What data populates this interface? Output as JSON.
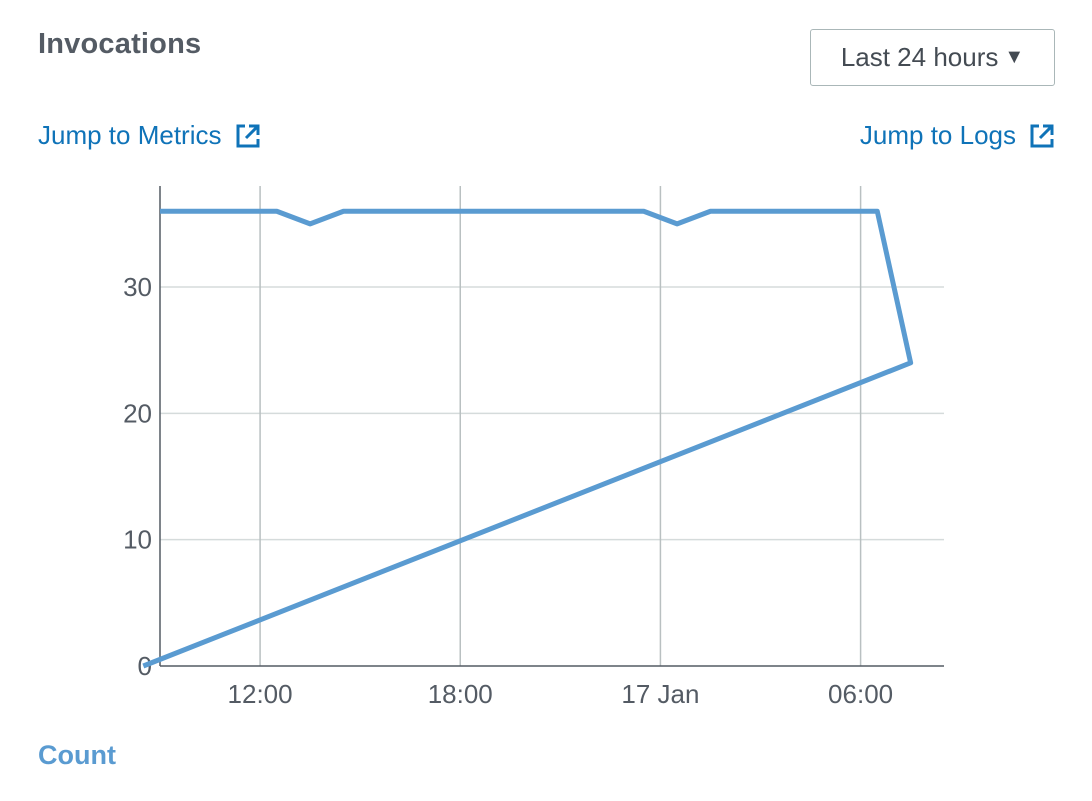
{
  "header": {
    "title": "Invocations",
    "range_label": "Last 24 hours",
    "caret_icon": "triangle-down-icon"
  },
  "links": {
    "metrics_label": "Jump to Metrics",
    "logs_label": "Jump to Logs",
    "external_icon": "external-link-icon",
    "color": "#0f73b8"
  },
  "chart_data": {
    "type": "line",
    "title": "",
    "xlabel": "",
    "ylabel": "",
    "x_ticks": [
      "12:00",
      "18:00",
      "17 Jan",
      "06:00"
    ],
    "y_ticks": [
      "0",
      "10",
      "20",
      "30"
    ],
    "ylim": [
      0,
      38
    ],
    "grid": true,
    "legend_position": "bottom-left",
    "series": [
      {
        "name": "Count",
        "color": "#5a9bd1",
        "points": [
          {
            "x": "09:00",
            "y": 36
          },
          {
            "x": "12:30",
            "y": 36
          },
          {
            "x": "13:30",
            "y": 35
          },
          {
            "x": "14:30",
            "y": 36
          },
          {
            "x": "23:30",
            "y": 36
          },
          {
            "x": "00:30",
            "y": 35
          },
          {
            "x": "01:30",
            "y": 36
          },
          {
            "x": "06:30",
            "y": 36
          },
          {
            "x": "07:30",
            "y": 24
          },
          {
            "x": "08:30",
            "y": 0
          }
        ]
      }
    ]
  }
}
